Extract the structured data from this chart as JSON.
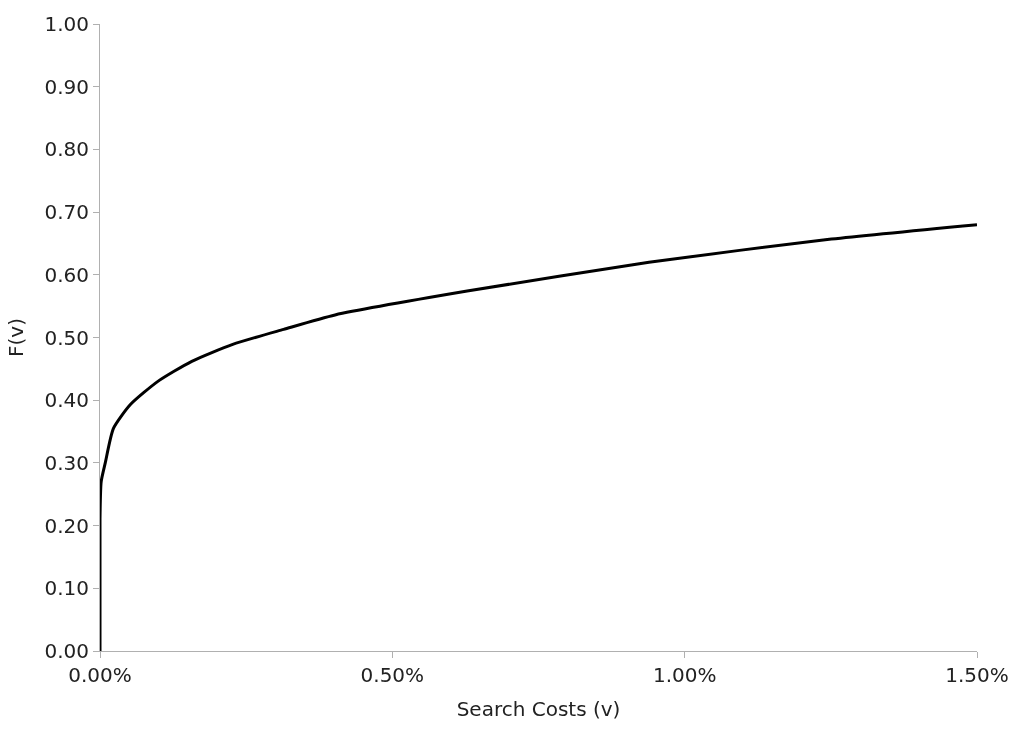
{
  "chart_data": {
    "type": "line",
    "xlabel": "Search Costs (v)",
    "ylabel": "F(v)",
    "x": [
      0,
      0,
      0.002,
      0.009,
      0.023,
      0.052,
      0.099,
      0.157,
      0.227,
      0.314,
      0.402,
      0.628,
      0.939,
      1.251,
      1.5
    ],
    "series": [
      {
        "color": "#000000",
        "values": [
          0,
          0.21,
          0.27,
          0.3,
          0.355,
          0.393,
          0.43,
          0.462,
          0.489,
          0.513,
          0.536,
          0.574,
          0.62,
          0.657,
          0.68
        ]
      }
    ],
    "xlim": [
      0,
      1.5
    ],
    "xticks": [
      {
        "value": 0,
        "label": "0.00%"
      },
      {
        "value": 0.5,
        "label": "0.50%"
      },
      {
        "value": 1,
        "label": "1.00%"
      },
      {
        "value": 1.5,
        "label": "1.50%"
      }
    ],
    "ylim": [
      0,
      1
    ],
    "yticks": [
      {
        "value": 0,
        "label": "0.00"
      },
      {
        "value": 0.1,
        "label": "0.10"
      },
      {
        "value": 0.2,
        "label": "0.20"
      },
      {
        "value": 0.3,
        "label": "0.30"
      },
      {
        "value": 0.4,
        "label": "0.40"
      },
      {
        "value": 0.5,
        "label": "0.50"
      },
      {
        "value": 0.6,
        "label": "0.60"
      },
      {
        "value": 0.7,
        "label": "0.70"
      },
      {
        "value": 0.8,
        "label": "0.80"
      },
      {
        "value": 0.9,
        "label": "0.90"
      },
      {
        "value": 1,
        "label": "1.00"
      }
    ],
    "marker": "none",
    "line_style": "solid"
  }
}
